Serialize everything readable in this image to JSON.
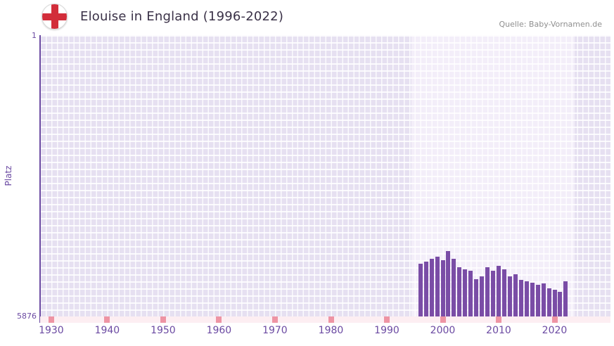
{
  "header": {
    "title": "Elouise in England (1996-2022)",
    "source": "Quelle: Baby-Vornamen.de",
    "flag_icon": "england-flag"
  },
  "style": {
    "bar_color": "#7a4da6",
    "plot_bg": "#e6e0f1",
    "band_bg": "#f3eef9",
    "grid_line": "rgba(255,255,255,0.85)",
    "axis_color": "#6b4aa2",
    "tick_color": "#6b4aa2",
    "title_color": "#3a3147",
    "source_color": "#8f8f8f",
    "strip_bg": "#fdeef2",
    "strip_tick": "#ee94a4",
    "flag_cross": "#d22d3a"
  },
  "chart_data": {
    "type": "bar",
    "title": "Elouise in England (1996-2022)",
    "xlabel": "",
    "ylabel": "Platz",
    "y_axis_inverted": true,
    "ylim": [
      1,
      5876
    ],
    "y_tick_labels": [
      "1",
      "5876"
    ],
    "x_range": [
      1928,
      2030
    ],
    "x_ticks": [
      "1930",
      "1940",
      "1950",
      "1960",
      "1970",
      "1980",
      "1990",
      "2000",
      "2010",
      "2020"
    ],
    "highlight_band": [
      1994.4,
      2023.6
    ],
    "grid": true,
    "legend": "none",
    "years": [
      1996,
      1997,
      1998,
      1999,
      2000,
      2001,
      2002,
      2003,
      2004,
      2005,
      2006,
      2007,
      2008,
      2009,
      2010,
      2011,
      2012,
      2013,
      2014,
      2015,
      2016,
      2017,
      2018,
      2019,
      2020,
      2021,
      2022
    ],
    "ranks": [
      4774,
      4730,
      4671,
      4627,
      4701,
      4510,
      4671,
      4848,
      4892,
      4921,
      5097,
      5039,
      4848,
      4921,
      4818,
      4892,
      5039,
      4995,
      5112,
      5142,
      5171,
      5215,
      5186,
      5288,
      5318,
      5362,
      5142
    ]
  }
}
